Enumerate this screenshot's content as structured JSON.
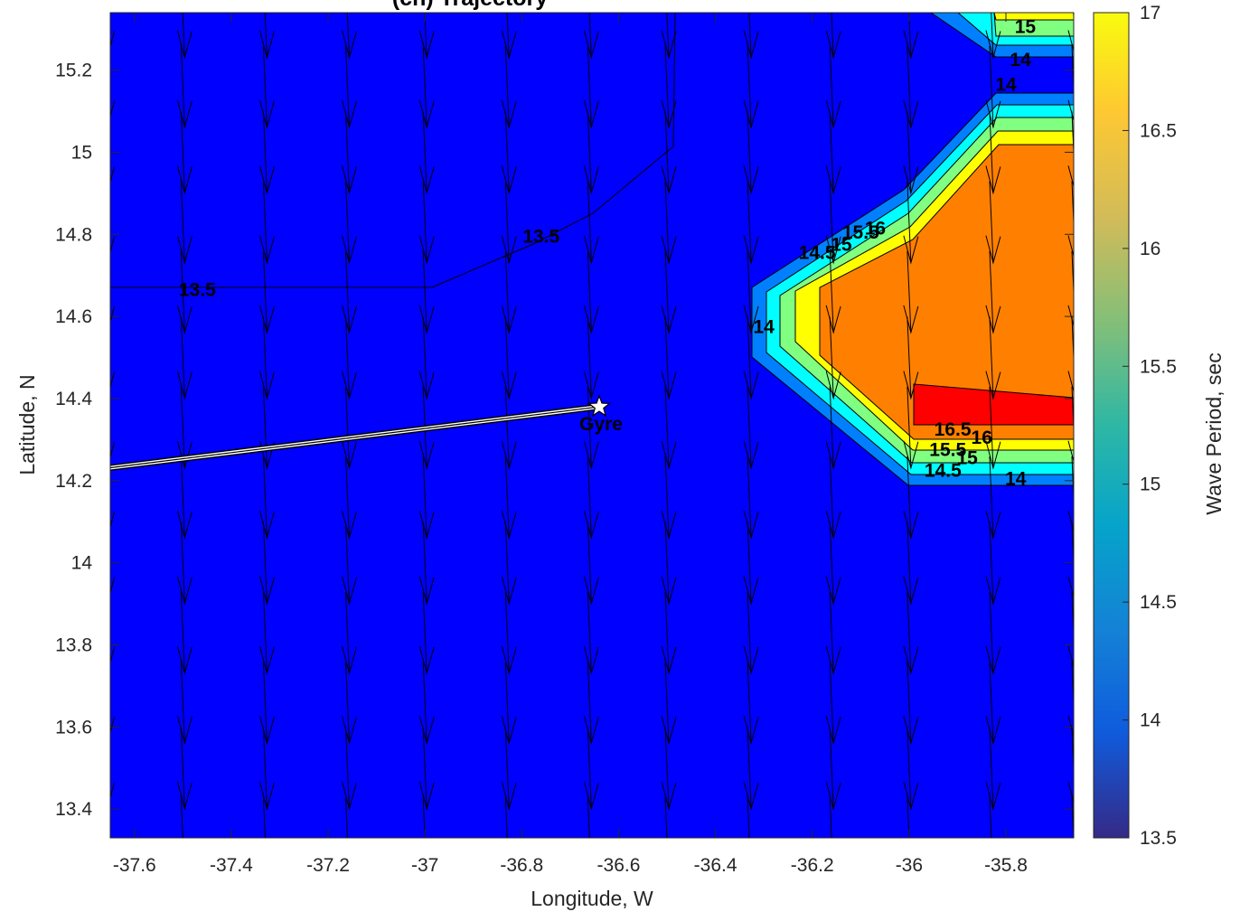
{
  "title": "(ch) Trajectory",
  "chart_data": {
    "type": "contour",
    "title": "(ch) Trajectory",
    "xlabel": "Longitude, W",
    "ylabel": "Latitude, N",
    "xlim": [
      -37.65,
      -35.66
    ],
    "ylim": [
      13.33,
      15.34
    ],
    "x_ticks": [
      -37.6,
      -37.4,
      -37.2,
      -37,
      -36.8,
      -36.6,
      -36.4,
      -36.2,
      -36,
      -35.8
    ],
    "y_ticks": [
      13.4,
      13.6,
      13.8,
      14,
      14.2,
      14.4,
      14.6,
      14.8,
      15,
      15.2
    ],
    "x_tick_labels": [
      "-37.6",
      "-37.4",
      "-37.2",
      "-37",
      "-36.8",
      "-36.6",
      "-36.4",
      "-36.2",
      "-36",
      "-35.8"
    ],
    "y_tick_labels": [
      "13.4",
      "13.6",
      "13.8",
      "14",
      "14.2",
      "14.4",
      "14.6",
      "14.8",
      "15",
      "15.2"
    ],
    "colorbar": {
      "label": "Wave Period, sec",
      "range": [
        13.5,
        17
      ],
      "ticks": [
        13.5,
        14,
        14.5,
        15,
        15.5,
        16,
        16.5,
        17
      ],
      "tick_labels": [
        "13.5",
        "14",
        "14.5",
        "15",
        "15.5",
        "16",
        "16.5",
        "17"
      ]
    },
    "field": {
      "background_level": 14,
      "contour_levels": [
        13.5,
        14,
        14.5,
        15,
        15.5,
        16,
        16.5,
        17
      ],
      "band_colors": {
        "14": "#0000ff",
        "14.5": "#0080ff",
        "15": "#00ffff",
        "15.5": "#80ff80",
        "16": "#ffff00",
        "16.5": "#ff8000",
        "17": "#ff0000"
      },
      "contour_labels": [
        {
          "text": "13.5",
          "x": -37.47,
          "y": 14.65
        },
        {
          "text": "13.5",
          "x": -36.76,
          "y": 14.78
        },
        {
          "text": "14",
          "x": -36.3,
          "y": 14.56
        },
        {
          "text": "14.5",
          "x": -36.19,
          "y": 14.74
        },
        {
          "text": "15",
          "x": -36.14,
          "y": 14.76
        },
        {
          "text": "15.5",
          "x": -36.1,
          "y": 14.79
        },
        {
          "text": "16",
          "x": -36.07,
          "y": 14.8
        },
        {
          "text": "16.5",
          "x": -35.91,
          "y": 14.31
        },
        {
          "text": "16",
          "x": -35.85,
          "y": 14.29
        },
        {
          "text": "15.5",
          "x": -35.92,
          "y": 14.26
        },
        {
          "text": "15",
          "x": -35.88,
          "y": 14.24
        },
        {
          "text": "14.5",
          "x": -35.93,
          "y": 14.21
        },
        {
          "text": "14",
          "x": -35.78,
          "y": 14.19
        },
        {
          "text": "15",
          "x": -35.76,
          "y": 15.29
        },
        {
          "text": "14",
          "x": -35.77,
          "y": 15.21
        },
        {
          "text": "14",
          "x": -35.8,
          "y": 15.15
        }
      ]
    },
    "vectors": {
      "x": [
        -37.66,
        -37.5,
        -37.33,
        -37.16,
        -37,
        -36.83,
        -36.66,
        -36.5,
        -36.33,
        -36.16,
        -36,
        -35.83,
        -35.66
      ],
      "y": [
        13.33,
        13.5,
        13.66,
        13.83,
        14,
        14.16,
        14.33,
        14.5,
        14.66,
        14.83,
        15,
        15.16,
        15.33
      ],
      "direction": "toward south (slightly east)"
    },
    "trajectory": {
      "points": [
        [
          -37.66,
          14.23
        ],
        [
          -36.64,
          14.38
        ]
      ],
      "line_color": "#ffffff",
      "edge_color": "#000000"
    },
    "marker": {
      "name": "Gyre",
      "x": -36.64,
      "y": 14.38,
      "symbol": "pentagram"
    }
  }
}
